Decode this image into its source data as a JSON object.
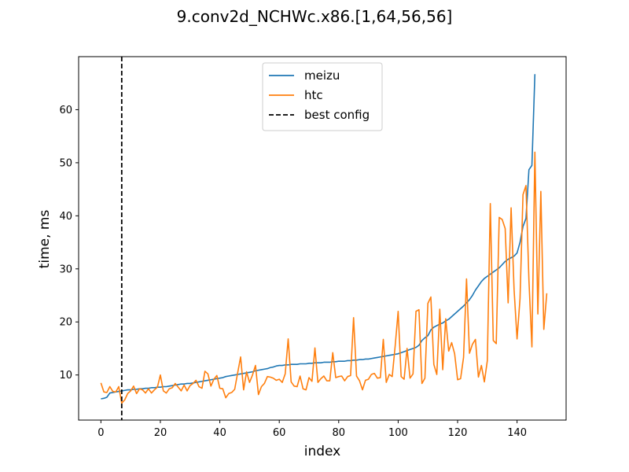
{
  "chart_data": {
    "type": "line",
    "title": "9.conv2d_NCHWc.x86.[1,64,56,56]",
    "xlabel": "index",
    "ylabel": "time, ms",
    "xlim": [
      -7.5,
      156.5
    ],
    "ylim": [
      1.5,
      70
    ],
    "xticks": [
      0,
      20,
      40,
      60,
      80,
      100,
      120,
      140
    ],
    "yticks": [
      10,
      20,
      30,
      40,
      50,
      60
    ],
    "grid": false,
    "legend_position": "top-center",
    "series": [
      {
        "name": "meizu",
        "color": "#1f77b4",
        "x_start": 0,
        "values": [
          5.5,
          5.6,
          5.8,
          6.6,
          6.7,
          6.8,
          6.9,
          7.0,
          7.1,
          7.2,
          7.2,
          7.3,
          7.3,
          7.4,
          7.4,
          7.5,
          7.5,
          7.6,
          7.6,
          7.7,
          7.7,
          7.8,
          7.8,
          7.9,
          8.0,
          8.1,
          8.2,
          8.3,
          8.3,
          8.4,
          8.4,
          8.5,
          8.6,
          8.7,
          8.8,
          8.9,
          9.0,
          9.1,
          9.2,
          9.3,
          9.4,
          9.5,
          9.7,
          9.8,
          9.9,
          10.0,
          10.1,
          10.2,
          10.3,
          10.4,
          10.5,
          10.6,
          10.8,
          10.9,
          11.0,
          11.1,
          11.2,
          11.4,
          11.5,
          11.7,
          11.8,
          11.8,
          11.9,
          11.9,
          12.0,
          12.0,
          12.0,
          12.1,
          12.1,
          12.1,
          12.2,
          12.2,
          12.3,
          12.3,
          12.3,
          12.4,
          12.4,
          12.4,
          12.5,
          12.5,
          12.6,
          12.6,
          12.6,
          12.7,
          12.7,
          12.8,
          12.8,
          12.9,
          12.9,
          13.0,
          13.0,
          13.1,
          13.2,
          13.3,
          13.4,
          13.5,
          13.6,
          13.7,
          13.8,
          13.9,
          14.0,
          14.2,
          14.4,
          14.6,
          14.8,
          15.0,
          15.2,
          15.6,
          16.5,
          17.0,
          17.4,
          18.5,
          19.0,
          19.3,
          19.6,
          19.8,
          20.2,
          20.5,
          21.0,
          21.5,
          22.0,
          22.5,
          23.0,
          23.6,
          24.2,
          25.0,
          26.0,
          26.8,
          27.6,
          28.2,
          28.6,
          29.0,
          29.4,
          29.8,
          30.2,
          30.8,
          31.4,
          31.8,
          32.1,
          32.4,
          33.0,
          35.0,
          38.0,
          39.5,
          48.7,
          49.5,
          66.7
        ]
      },
      {
        "name": "htc",
        "color": "#ff7f0e",
        "x_start": 0,
        "values": [
          8.5,
          6.8,
          6.7,
          7.8,
          6.9,
          6.8,
          7.8,
          4.7,
          5.3,
          6.5,
          7.0,
          7.9,
          6.5,
          7.4,
          7.2,
          6.6,
          7.4,
          6.6,
          7.2,
          7.7,
          10.0,
          7.0,
          6.6,
          7.4,
          7.6,
          8.4,
          7.7,
          7.0,
          8.1,
          7.0,
          8.0,
          8.4,
          9.0,
          7.8,
          7.5,
          10.7,
          10.2,
          7.9,
          9.2,
          9.9,
          7.5,
          7.4,
          5.7,
          6.5,
          6.7,
          7.3,
          10.4,
          13.4,
          7.2,
          10.6,
          8.6,
          10.0,
          11.8,
          6.3,
          7.8,
          8.4,
          9.7,
          9.6,
          9.4,
          9.0,
          9.2,
          8.6,
          10.2,
          16.8,
          8.7,
          7.9,
          7.8,
          9.8,
          7.4,
          7.2,
          9.5,
          8.8,
          15.1,
          8.6,
          9.3,
          9.8,
          8.9,
          8.9,
          14.2,
          9.5,
          9.7,
          9.8,
          8.9,
          9.7,
          9.9,
          20.8,
          9.8,
          8.9,
          7.2,
          9.0,
          9.2,
          10.1,
          10.3,
          9.4,
          9.5,
          16.7,
          8.6,
          10.1,
          9.7,
          15.5,
          22.0,
          9.7,
          9.2,
          15.0,
          9.4,
          10.2,
          22.0,
          22.3,
          8.4,
          9.4,
          23.5,
          24.7,
          12.0,
          10.1,
          22.4,
          11.0,
          20.6,
          14.5,
          16.1,
          14.0,
          9.1,
          9.3,
          13.3,
          28.1,
          14.1,
          15.8,
          16.7,
          9.6,
          11.8,
          8.7,
          12.7,
          42.3,
          16.5,
          15.9,
          39.7,
          39.3,
          37.6,
          23.6,
          41.5,
          26.1,
          16.8,
          24.4,
          44.0,
          45.7,
          27.8,
          15.3,
          52.0,
          21.5,
          44.6,
          18.6,
          25.4
        ]
      },
      {
        "name": "best config",
        "color": "#000000",
        "style": "dashed-vertical",
        "x": 7
      }
    ]
  }
}
